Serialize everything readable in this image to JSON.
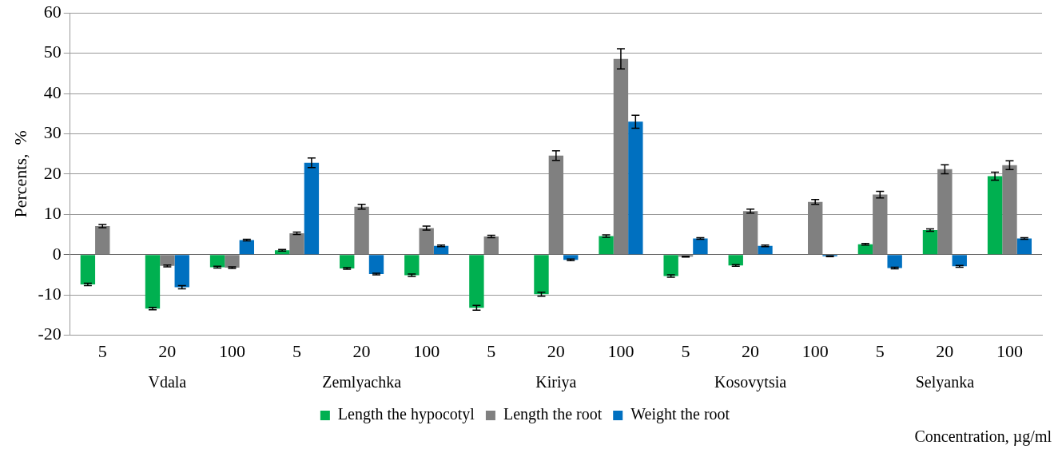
{
  "chart_data": {
    "type": "bar",
    "ylabel": "Percents,  %",
    "xlabel": "Concentration, µg/ml",
    "categories": [
      "5",
      "20",
      "100",
      "5",
      "20",
      "100",
      "5",
      "20",
      "100",
      "5",
      "20",
      "100",
      "5",
      "20",
      "100"
    ],
    "annotations": [
      "Vdala",
      "Zemlyachka",
      "Kiriya",
      "Kosovytsia",
      "Selyanka"
    ],
    "series": [
      {
        "name": "Length the hypocotyl",
        "color": "#00b050",
        "values": [
          -7.4,
          -13.4,
          -3.1,
          1.1,
          -3.4,
          -5.1,
          -13.2,
          -9.8,
          4.6,
          -5.3,
          -2.7,
          0.1,
          2.6,
          6.1,
          19.5
        ],
        "errors": [
          0.3,
          0.3,
          0.2,
          0.2,
          0.2,
          0.3,
          0.6,
          0.5,
          0.3,
          0.3,
          0.2,
          null,
          0.2,
          0.3,
          1.0
        ]
      },
      {
        "name": "Length the root",
        "color": "#808080",
        "values": [
          7.1,
          -2.8,
          -3.2,
          5.3,
          11.9,
          6.6,
          4.5,
          24.6,
          48.6,
          -0.5,
          10.8,
          13.1,
          14.9,
          21.2,
          22.2
        ],
        "errors": [
          0.4,
          0.2,
          0.2,
          0.3,
          0.6,
          0.5,
          0.3,
          1.2,
          2.5,
          0.1,
          0.5,
          0.6,
          0.8,
          1.1,
          1.1
        ]
      },
      {
        "name": "Weight the root",
        "color": "#0070c0",
        "values": [
          null,
          -8.1,
          3.6,
          22.8,
          -4.8,
          2.2,
          null,
          -1.3,
          33.0,
          4.0,
          2.2,
          -0.4,
          -3.3,
          -2.9,
          4.0
        ],
        "errors": [
          null,
          0.4,
          0.2,
          1.2,
          0.2,
          0.2,
          null,
          0.2,
          1.6,
          0.2,
          0.2,
          0.1,
          0.2,
          0.2,
          0.2
        ]
      }
    ],
    "ylim": [
      -20,
      60
    ],
    "yticks": [
      -20,
      -10,
      0,
      10,
      20,
      30,
      40,
      50,
      60
    ],
    "grid": "y",
    "legend": "bottom"
  }
}
